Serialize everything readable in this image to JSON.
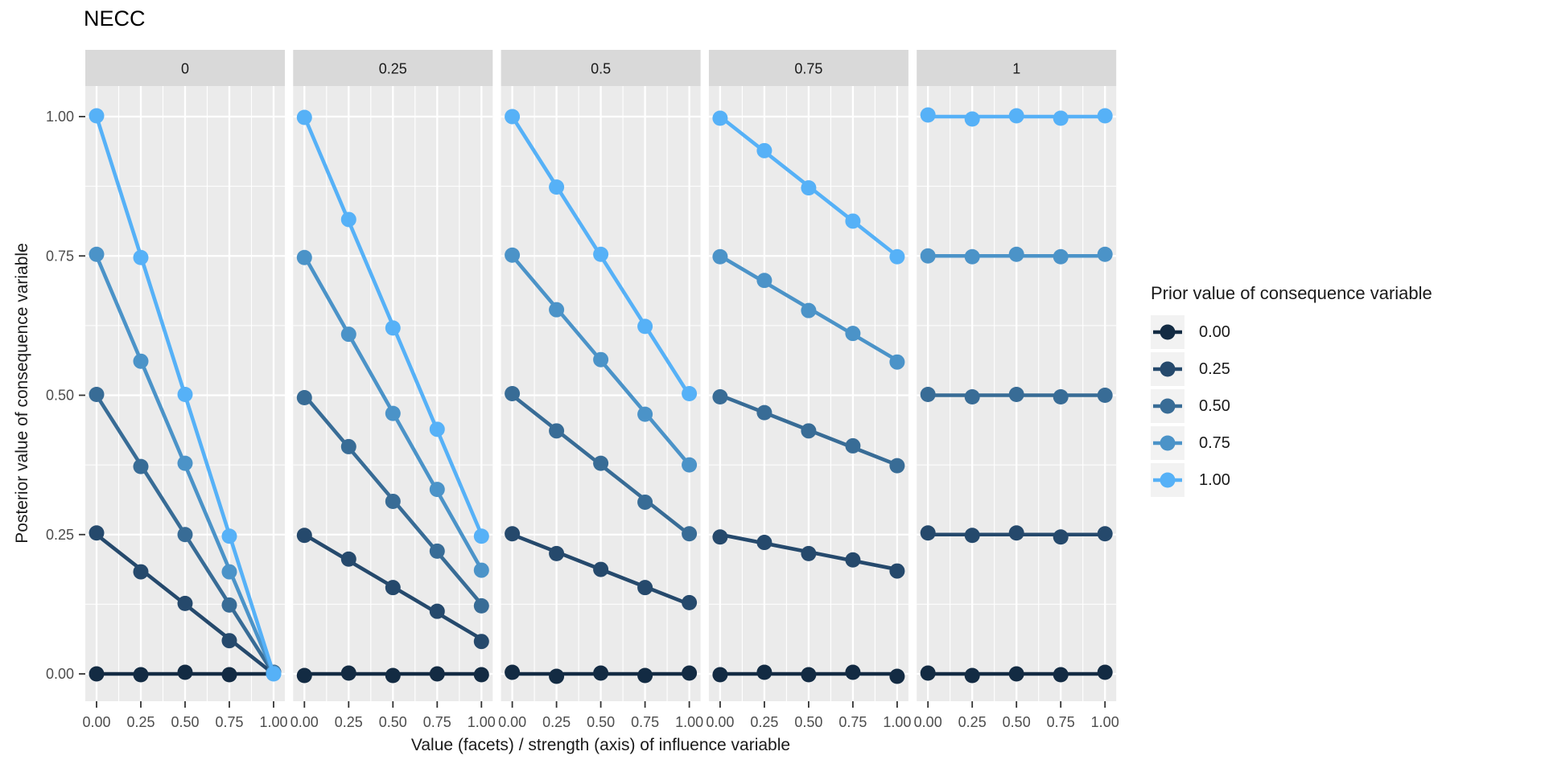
{
  "title": "NECC",
  "axes": {
    "x_title": "Value (facets) / strength (axis) of influence variable",
    "y_title": "Posterior value of consequence variable",
    "x_tick_labels": [
      "0.00",
      "0.25",
      "0.50",
      "0.75",
      "1.00"
    ],
    "y_tick_labels": [
      "0.00",
      "0.25",
      "0.50",
      "0.75",
      "1.00"
    ]
  },
  "facet_strip_labels": [
    "0",
    "0.25",
    "0.5",
    "0.75",
    "1"
  ],
  "legend": {
    "title": "Prior value of consequence variable",
    "entries": [
      {
        "label": "0.00",
        "color": "#132B43"
      },
      {
        "label": "0.25",
        "color": "#25496C"
      },
      {
        "label": "0.50",
        "color": "#386C96"
      },
      {
        "label": "0.75",
        "color": "#4B93C8"
      },
      {
        "label": "1.00",
        "color": "#56B1F7"
      }
    ]
  },
  "colors": {
    "panel_background": "#EBEBEB",
    "strip_background": "#D9D9D9",
    "gridline": "#FFFFFF",
    "axis_text": "#4D4D4D",
    "tick_mark": "#333333",
    "legend_key_background": "#F2F2F2",
    "title_text": "#000000"
  },
  "chart_data": {
    "type": "line",
    "title": "NECC",
    "xlabel": "Value (facets) / strength (axis) of influence variable",
    "ylabel": "Posterior value of consequence variable",
    "legend_title": "Prior value of consequence variable",
    "legend_position": "right",
    "grid": true,
    "x": [
      0,
      0.25,
      0.5,
      0.75,
      1
    ],
    "xlim": [
      0,
      1
    ],
    "ylim": [
      0,
      1
    ],
    "x_ticks": [
      0,
      0.25,
      0.5,
      0.75,
      1
    ],
    "y_ticks": [
      0,
      0.25,
      0.5,
      0.75,
      1
    ],
    "facet_variable": "value of influence variable",
    "facets": [
      {
        "label": "0",
        "series": [
          {
            "name": "0.00",
            "color": "#132B43",
            "values": [
              0,
              0,
              0,
              0,
              0
            ]
          },
          {
            "name": "0.25",
            "color": "#25496C",
            "values": [
              0.25,
              0.1875,
              0.125,
              0.0625,
              0
            ]
          },
          {
            "name": "0.50",
            "color": "#386C96",
            "values": [
              0.5,
              0.375,
              0.25,
              0.125,
              0
            ]
          },
          {
            "name": "0.75",
            "color": "#4B93C8",
            "values": [
              0.75,
              0.5625,
              0.375,
              0.1875,
              0
            ]
          },
          {
            "name": "1.00",
            "color": "#56B1F7",
            "values": [
              1,
              0.75,
              0.5,
              0.25,
              0
            ]
          }
        ]
      },
      {
        "label": "0.25",
        "series": [
          {
            "name": "0.00",
            "color": "#132B43",
            "values": [
              0,
              0,
              0,
              0,
              0
            ]
          },
          {
            "name": "0.25",
            "color": "#25496C",
            "values": [
              0.25,
              0.2031,
              0.1563,
              0.1094,
              0.0625
            ]
          },
          {
            "name": "0.50",
            "color": "#386C96",
            "values": [
              0.5,
              0.4063,
              0.3125,
              0.2188,
              0.125
            ]
          },
          {
            "name": "0.75",
            "color": "#4B93C8",
            "values": [
              0.75,
              0.6094,
              0.4688,
              0.3281,
              0.1875
            ]
          },
          {
            "name": "1.00",
            "color": "#56B1F7",
            "values": [
              1,
              0.8125,
              0.625,
              0.4375,
              0.25
            ]
          }
        ]
      },
      {
        "label": "0.5",
        "series": [
          {
            "name": "0.00",
            "color": "#132B43",
            "values": [
              0,
              0,
              0,
              0,
              0
            ]
          },
          {
            "name": "0.25",
            "color": "#25496C",
            "values": [
              0.25,
              0.2188,
              0.1875,
              0.1563,
              0.125
            ]
          },
          {
            "name": "0.50",
            "color": "#386C96",
            "values": [
              0.5,
              0.4375,
              0.375,
              0.3125,
              0.25
            ]
          },
          {
            "name": "0.75",
            "color": "#4B93C8",
            "values": [
              0.75,
              0.6563,
              0.5625,
              0.4688,
              0.375
            ]
          },
          {
            "name": "1.00",
            "color": "#56B1F7",
            "values": [
              1,
              0.875,
              0.75,
              0.625,
              0.5
            ]
          }
        ]
      },
      {
        "label": "0.75",
        "series": [
          {
            "name": "0.00",
            "color": "#132B43",
            "values": [
              0,
              0,
              0,
              0,
              0
            ]
          },
          {
            "name": "0.25",
            "color": "#25496C",
            "values": [
              0.25,
              0.2344,
              0.2188,
              0.2031,
              0.1875
            ]
          },
          {
            "name": "0.50",
            "color": "#386C96",
            "values": [
              0.5,
              0.4688,
              0.4375,
              0.4063,
              0.375
            ]
          },
          {
            "name": "0.75",
            "color": "#4B93C8",
            "values": [
              0.75,
              0.7031,
              0.6563,
              0.6094,
              0.5625
            ]
          },
          {
            "name": "1.00",
            "color": "#56B1F7",
            "values": [
              1,
              0.9375,
              0.875,
              0.8125,
              0.75
            ]
          }
        ]
      },
      {
        "label": "1",
        "series": [
          {
            "name": "0.00",
            "color": "#132B43",
            "values": [
              0,
              0,
              0,
              0,
              0
            ]
          },
          {
            "name": "0.25",
            "color": "#25496C",
            "values": [
              0.25,
              0.25,
              0.25,
              0.25,
              0.25
            ]
          },
          {
            "name": "0.50",
            "color": "#386C96",
            "values": [
              0.5,
              0.5,
              0.5,
              0.5,
              0.5
            ]
          },
          {
            "name": "0.75",
            "color": "#4B93C8",
            "values": [
              0.75,
              0.75,
              0.75,
              0.75,
              0.75
            ]
          },
          {
            "name": "1.00",
            "color": "#56B1F7",
            "values": [
              1,
              1,
              1,
              1,
              1
            ]
          }
        ]
      }
    ]
  }
}
